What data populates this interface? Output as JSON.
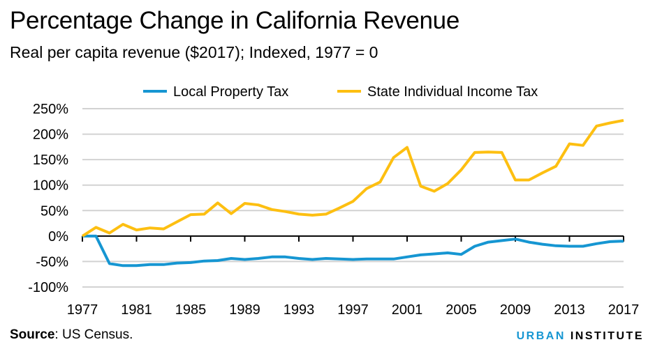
{
  "title": "Percentage Change in California Revenue",
  "subtitle": "Real per capita revenue ($2017); Indexed, 1977 = 0",
  "source_label": "Source",
  "source_text": ": US Census.",
  "logo": {
    "word1": "URBAN",
    "word2": "INSTITUTE"
  },
  "chart_data": {
    "type": "line",
    "title": "",
    "xlabel": "",
    "ylabel": "",
    "xlim": [
      1977,
      2017
    ],
    "ylim": [
      -100,
      250
    ],
    "grid": true,
    "legend_position": "top",
    "x_ticks": [
      "1977",
      "1981",
      "1985",
      "1989",
      "1993",
      "1997",
      "2001",
      "2005",
      "2009",
      "2013",
      "2017"
    ],
    "y_ticks": [
      {
        "value": 250,
        "label": "250%"
      },
      {
        "value": 200,
        "label": "200%"
      },
      {
        "value": 150,
        "label": "150%"
      },
      {
        "value": 100,
        "label": "100%"
      },
      {
        "value": 50,
        "label": "50%"
      },
      {
        "value": 0,
        "label": "0%"
      },
      {
        "value": -50,
        "label": "-50%"
      },
      {
        "value": -100,
        "label": "-100%"
      }
    ],
    "x": [
      1977,
      1978,
      1979,
      1980,
      1981,
      1982,
      1983,
      1984,
      1985,
      1986,
      1987,
      1988,
      1989,
      1990,
      1991,
      1992,
      1993,
      1994,
      1995,
      1996,
      1997,
      1998,
      1999,
      2000,
      2001,
      2002,
      2003,
      2004,
      2005,
      2006,
      2007,
      2008,
      2009,
      2010,
      2011,
      2012,
      2013,
      2014,
      2015,
      2016,
      2017
    ],
    "series": [
      {
        "name": "Local Property Tax",
        "color": "#1696d2",
        "values": [
          0,
          0,
          -54,
          -58,
          -58,
          -56,
          -56,
          -53,
          -52,
          -49,
          -48,
          -44,
          -46,
          -44,
          -41,
          -41,
          -44,
          -46,
          -44,
          -45,
          -46,
          -45,
          -45,
          -45,
          -41,
          -37,
          -35,
          -33,
          -36,
          -20,
          -12,
          -9,
          -6,
          -12,
          -16,
          -19,
          -20,
          -20,
          -15,
          -11,
          -10
        ]
      },
      {
        "name": "State Individual Income Tax",
        "color": "#fdbf11",
        "values": [
          0,
          17,
          6,
          23,
          12,
          16,
          14,
          28,
          42,
          43,
          65,
          44,
          64,
          61,
          52,
          48,
          43,
          41,
          43,
          55,
          68,
          93,
          106,
          154,
          174,
          98,
          88,
          103,
          130,
          164,
          165,
          164,
          110,
          110,
          124,
          137,
          181,
          178,
          216,
          222,
          227
        ]
      }
    ]
  }
}
